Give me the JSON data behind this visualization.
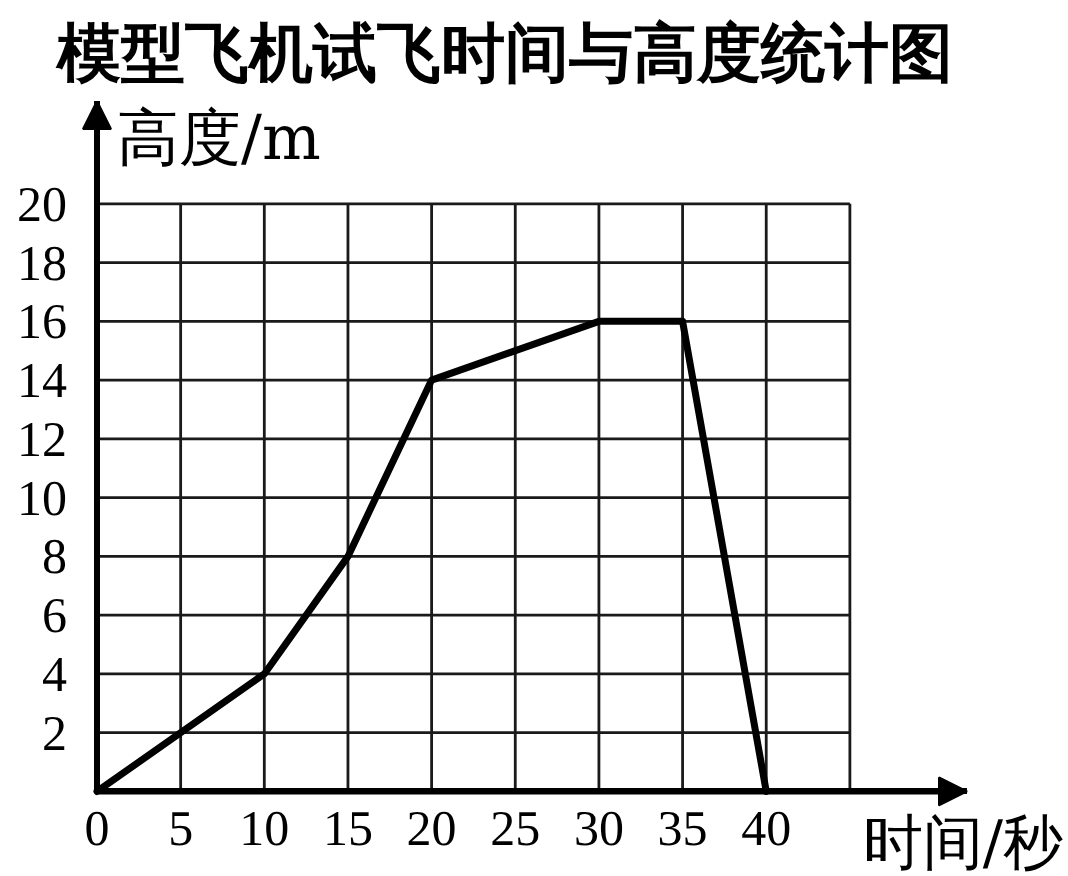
{
  "chart_data": {
    "type": "line",
    "title": "模型飞机试飞时间与高度统计图",
    "xlabel": "时间/秒",
    "ylabel": "高度/m",
    "x": [
      0,
      10,
      15,
      20,
      30,
      35,
      40
    ],
    "series": [
      {
        "color": "#000000",
        "values": [
          0,
          4,
          8,
          14,
          16,
          16,
          0
        ]
      }
    ],
    "xlim": [
      0,
      52
    ],
    "ylim": [
      0,
      23.5
    ],
    "xticks": [
      0,
      5,
      10,
      15,
      20,
      25,
      30,
      35,
      40,
      {
        "value": 45,
        "label": null
      }
    ],
    "yticks": [
      2,
      4,
      6,
      8,
      10,
      12,
      14,
      16,
      18,
      20
    ],
    "grid": true
  }
}
